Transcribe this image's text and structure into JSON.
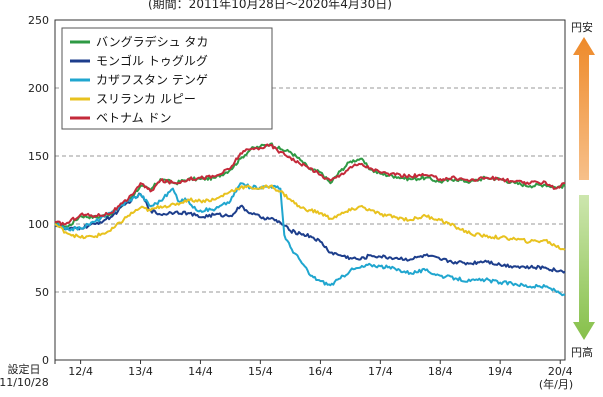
{
  "chart_data": {
    "type": "line",
    "period": "(期間：2011年10月28日～2020年4月30日)",
    "y_range": [
      0,
      250
    ],
    "y_ticks": [
      "0",
      "50",
      "100",
      "150",
      "200",
      "250"
    ],
    "x_ticks": [
      "12/4",
      "13/4",
      "14/4",
      "15/4",
      "16/4",
      "17/4",
      "18/4",
      "19/4",
      "20/4"
    ],
    "x_start_label": "設定日",
    "x_start_date": "11/10/28",
    "x_unit": "(年/月)",
    "gridlines": "dashed, horizontal",
    "legend_position": "top-left",
    "side_labels": {
      "top": "円安",
      "bottom": "円高"
    },
    "arrow_colors": {
      "up": "#ee8a2a",
      "down": "#86c04a"
    },
    "series": [
      {
        "name": "バングラデシュ タカ",
        "color": "#2f9a44",
        "points": [
          [
            "2011-10-28",
            100
          ],
          [
            "2012-01-15",
            98
          ],
          [
            "2012-04-01",
            106
          ],
          [
            "2012-07-01",
            105
          ],
          [
            "2012-10-01",
            107
          ],
          [
            "2013-01-15",
            117
          ],
          [
            "2013-04-01",
            128
          ],
          [
            "2013-06-01",
            125
          ],
          [
            "2013-08-01",
            133
          ],
          [
            "2013-11-01",
            130
          ],
          [
            "2014-01-15",
            133
          ],
          [
            "2014-04-01",
            133
          ],
          [
            "2014-07-01",
            134
          ],
          [
            "2014-10-01",
            140
          ],
          [
            "2014-12-01",
            148
          ],
          [
            "2015-02-01",
            155
          ],
          [
            "2015-04-01",
            157
          ],
          [
            "2015-06-01",
            159
          ],
          [
            "2015-08-01",
            155
          ],
          [
            "2015-10-01",
            153
          ],
          [
            "2015-12-01",
            147
          ],
          [
            "2016-02-01",
            140
          ],
          [
            "2016-04-01",
            138
          ],
          [
            "2016-06-01",
            130
          ],
          [
            "2016-08-01",
            139
          ],
          [
            "2016-10-01",
            146
          ],
          [
            "2016-12-01",
            148
          ],
          [
            "2017-02-01",
            140
          ],
          [
            "2017-04-01",
            137
          ],
          [
            "2017-07-01",
            135
          ],
          [
            "2017-10-01",
            133
          ],
          [
            "2018-01-01",
            134
          ],
          [
            "2018-04-01",
            131
          ],
          [
            "2018-07-01",
            133
          ],
          [
            "2018-10-01",
            131
          ],
          [
            "2019-01-01",
            134
          ],
          [
            "2019-04-01",
            133
          ],
          [
            "2019-07-01",
            130
          ],
          [
            "2019-10-01",
            128
          ],
          [
            "2020-01-01",
            129
          ],
          [
            "2020-03-01",
            127
          ],
          [
            "2020-04-30",
            128
          ]
        ]
      },
      {
        "name": "モンゴル トゥグルグ",
        "color": "#1d3e8c",
        "points": [
          [
            "2011-10-28",
            100
          ],
          [
            "2012-01-01",
            96
          ],
          [
            "2012-04-01",
            97
          ],
          [
            "2012-07-01",
            100
          ],
          [
            "2012-10-01",
            105
          ],
          [
            "2013-01-15",
            116
          ],
          [
            "2013-04-01",
            122
          ],
          [
            "2013-06-01",
            110
          ],
          [
            "2013-08-01",
            107
          ],
          [
            "2013-11-01",
            109
          ],
          [
            "2014-01-15",
            108
          ],
          [
            "2014-04-01",
            105
          ],
          [
            "2014-07-01",
            107
          ],
          [
            "2014-10-01",
            106
          ],
          [
            "2014-12-01",
            113
          ],
          [
            "2015-02-01",
            108
          ],
          [
            "2015-04-01",
            105
          ],
          [
            "2015-06-01",
            104
          ],
          [
            "2015-08-01",
            101
          ],
          [
            "2015-10-01",
            95
          ],
          [
            "2015-12-01",
            93
          ],
          [
            "2016-02-01",
            91
          ],
          [
            "2016-04-01",
            87
          ],
          [
            "2016-06-01",
            79
          ],
          [
            "2016-08-01",
            77
          ],
          [
            "2016-10-01",
            75
          ],
          [
            "2016-12-01",
            74
          ],
          [
            "2017-02-01",
            77
          ],
          [
            "2017-04-01",
            76
          ],
          [
            "2017-07-01",
            75
          ],
          [
            "2017-10-01",
            74
          ],
          [
            "2018-01-01",
            77
          ],
          [
            "2018-04-01",
            74
          ],
          [
            "2018-07-01",
            72
          ],
          [
            "2018-10-01",
            71
          ],
          [
            "2019-01-01",
            73
          ],
          [
            "2019-04-01",
            70
          ],
          [
            "2019-07-01",
            69
          ],
          [
            "2019-10-01",
            68
          ],
          [
            "2020-01-01",
            68
          ],
          [
            "2020-03-01",
            66
          ],
          [
            "2020-04-30",
            65
          ]
        ]
      },
      {
        "name": "カザフスタン テンゲ",
        "color": "#20a6cf",
        "points": [
          [
            "2011-10-28",
            100
          ],
          [
            "2012-01-01",
            96
          ],
          [
            "2012-04-01",
            97
          ],
          [
            "2012-07-01",
            102
          ],
          [
            "2012-10-01",
            108
          ],
          [
            "2013-01-15",
            117
          ],
          [
            "2013-04-01",
            122
          ],
          [
            "2013-06-01",
            113
          ],
          [
            "2013-08-01",
            117
          ],
          [
            "2013-10-15",
            126
          ],
          [
            "2013-11-15",
            117
          ],
          [
            "2014-01-15",
            118
          ],
          [
            "2014-02-15",
            112
          ],
          [
            "2014-04-01",
            110
          ],
          [
            "2014-07-01",
            111
          ],
          [
            "2014-10-01",
            117
          ],
          [
            "2014-12-01",
            130
          ],
          [
            "2015-02-01",
            127
          ],
          [
            "2015-04-01",
            127
          ],
          [
            "2015-06-01",
            128
          ],
          [
            "2015-08-01",
            126
          ],
          [
            "2015-08-25",
            92
          ],
          [
            "2015-10-01",
            83
          ],
          [
            "2015-12-01",
            73
          ],
          [
            "2016-02-01",
            62
          ],
          [
            "2016-04-01",
            58
          ],
          [
            "2016-06-01",
            55
          ],
          [
            "2016-08-01",
            60
          ],
          [
            "2016-10-01",
            66
          ],
          [
            "2016-12-01",
            68
          ],
          [
            "2017-02-01",
            70
          ],
          [
            "2017-04-01",
            69
          ],
          [
            "2017-07-01",
            67
          ],
          [
            "2017-10-01",
            64
          ],
          [
            "2018-01-01",
            66
          ],
          [
            "2018-04-01",
            62
          ],
          [
            "2018-07-01",
            60
          ],
          [
            "2018-10-01",
            58
          ],
          [
            "2019-01-01",
            59
          ],
          [
            "2019-04-01",
            57
          ],
          [
            "2019-07-01",
            56
          ],
          [
            "2019-10-01",
            54
          ],
          [
            "2020-01-01",
            54
          ],
          [
            "2020-03-01",
            51
          ],
          [
            "2020-04-30",
            48
          ]
        ]
      },
      {
        "name": "スリランカ ルピー",
        "color": "#e8c21f",
        "points": [
          [
            "2011-10-28",
            100
          ],
          [
            "2012-01-01",
            94
          ],
          [
            "2012-04-01",
            90
          ],
          [
            "2012-07-01",
            91
          ],
          [
            "2012-10-01",
            95
          ],
          [
            "2013-01-15",
            106
          ],
          [
            "2013-04-01",
            112
          ],
          [
            "2013-06-01",
            110
          ],
          [
            "2013-08-01",
            113
          ],
          [
            "2013-11-01",
            114
          ],
          [
            "2014-01-15",
            118
          ],
          [
            "2014-04-01",
            117
          ],
          [
            "2014-07-01",
            118
          ],
          [
            "2014-10-01",
            124
          ],
          [
            "2014-12-01",
            127
          ],
          [
            "2015-02-01",
            127
          ],
          [
            "2015-04-01",
            126
          ],
          [
            "2015-06-01",
            128
          ],
          [
            "2015-08-01",
            124
          ],
          [
            "2015-10-01",
            118
          ],
          [
            "2015-12-01",
            112
          ],
          [
            "2016-02-01",
            110
          ],
          [
            "2016-04-01",
            108
          ],
          [
            "2016-06-01",
            104
          ],
          [
            "2016-08-01",
            107
          ],
          [
            "2016-10-01",
            110
          ],
          [
            "2016-12-01",
            113
          ],
          [
            "2017-02-01",
            110
          ],
          [
            "2017-04-01",
            107
          ],
          [
            "2017-07-01",
            105
          ],
          [
            "2017-10-01",
            103
          ],
          [
            "2018-01-01",
            106
          ],
          [
            "2018-04-01",
            103
          ],
          [
            "2018-07-01",
            98
          ],
          [
            "2018-10-01",
            93
          ],
          [
            "2019-01-01",
            91
          ],
          [
            "2019-04-01",
            90
          ],
          [
            "2019-07-01",
            89
          ],
          [
            "2019-10-01",
            87
          ],
          [
            "2020-01-01",
            88
          ],
          [
            "2020-03-01",
            84
          ],
          [
            "2020-04-30",
            81
          ]
        ]
      },
      {
        "name": "ベトナム ドン",
        "color": "#c42a3a",
        "points": [
          [
            "2011-10-28",
            101
          ],
          [
            "2012-01-01",
            100
          ],
          [
            "2012-04-01",
            107
          ],
          [
            "2012-07-01",
            106
          ],
          [
            "2012-10-01",
            108
          ],
          [
            "2013-01-15",
            118
          ],
          [
            "2013-04-01",
            130
          ],
          [
            "2013-06-01",
            124
          ],
          [
            "2013-08-01",
            132
          ],
          [
            "2013-11-01",
            130
          ],
          [
            "2014-01-15",
            133
          ],
          [
            "2014-04-01",
            134
          ],
          [
            "2014-07-01",
            135
          ],
          [
            "2014-10-01",
            141
          ],
          [
            "2014-12-01",
            152
          ],
          [
            "2015-02-01",
            155
          ],
          [
            "2015-04-01",
            156
          ],
          [
            "2015-06-01",
            158
          ],
          [
            "2015-08-01",
            153
          ],
          [
            "2015-10-01",
            149
          ],
          [
            "2015-12-01",
            144
          ],
          [
            "2016-02-01",
            141
          ],
          [
            "2016-04-01",
            136
          ],
          [
            "2016-06-01",
            132
          ],
          [
            "2016-08-01",
            136
          ],
          [
            "2016-10-01",
            142
          ],
          [
            "2016-12-01",
            144
          ],
          [
            "2017-02-01",
            141
          ],
          [
            "2017-04-01",
            138
          ],
          [
            "2017-07-01",
            136
          ],
          [
            "2017-10-01",
            135
          ],
          [
            "2018-01-01",
            136
          ],
          [
            "2018-04-01",
            133
          ],
          [
            "2018-07-01",
            134
          ],
          [
            "2018-10-01",
            132
          ],
          [
            "2019-01-01",
            134
          ],
          [
            "2019-04-01",
            133
          ],
          [
            "2019-07-01",
            131
          ],
          [
            "2019-10-01",
            130
          ],
          [
            "2020-01-01",
            131
          ],
          [
            "2020-03-01",
            126
          ],
          [
            "2020-04-30",
            130
          ]
        ]
      }
    ]
  }
}
